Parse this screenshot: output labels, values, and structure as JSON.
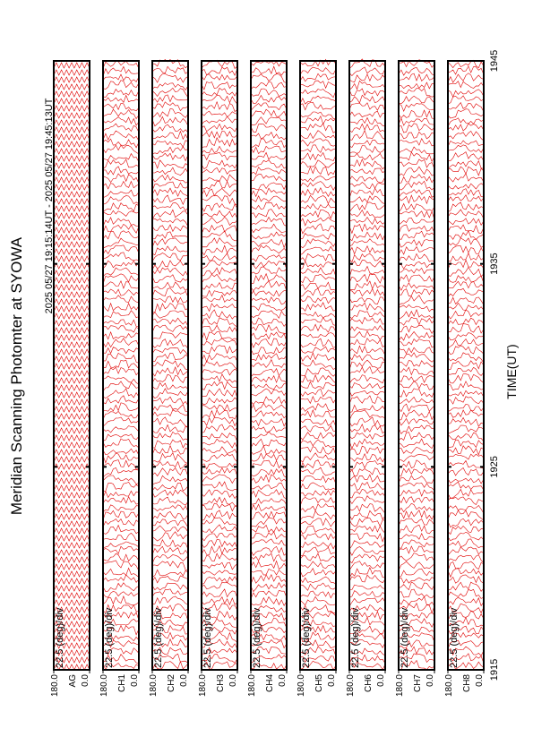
{
  "chart_data": {
    "type": "line",
    "title": "Meridian Scanning Photomter at SYOWA",
    "subtitle": "2025 05/27 19:15:14UT - 2025 05/27 19:45:13UT",
    "xlabel": "TIME(UT)",
    "xlim": [
      1915,
      1945
    ],
    "xticks": [
      1915,
      1925,
      1935,
      1945
    ],
    "color": "#e00000",
    "panels": [
      {
        "name": "AG",
        "scale": "22.5 (deg)/div",
        "ylim": [
          0,
          180
        ],
        "yticks": [
          {
            "value": 180,
            "label": "180.0"
          },
          {
            "value": 0,
            "label": "0.0"
          }
        ]
      },
      {
        "name": "CH1",
        "scale": "22.5 (deg)/div",
        "ylim": [
          0,
          180
        ],
        "yticks": [
          {
            "value": 180,
            "label": "180.0"
          },
          {
            "value": 0,
            "label": "0.0"
          }
        ]
      },
      {
        "name": "CH2",
        "scale": "22.5 (deg)/div",
        "ylim": [
          0,
          180
        ],
        "yticks": [
          {
            "value": 180,
            "label": "180.0"
          },
          {
            "value": 0,
            "label": "0.0"
          }
        ]
      },
      {
        "name": "CH3",
        "scale": "22.5 (deg)/div",
        "ylim": [
          0,
          180
        ],
        "yticks": [
          {
            "value": 180,
            "label": "180.0"
          },
          {
            "value": 0,
            "label": "0.0"
          }
        ]
      },
      {
        "name": "CH4",
        "scale": "22.5 (deg)/div",
        "ylim": [
          0,
          180
        ],
        "yticks": [
          {
            "value": 180,
            "label": "180.0"
          },
          {
            "value": 0,
            "label": "0.0"
          }
        ]
      },
      {
        "name": "CH5",
        "scale": "22.5 (deg)/div",
        "ylim": [
          0,
          180
        ],
        "yticks": [
          {
            "value": 180,
            "label": "180.0"
          },
          {
            "value": 0,
            "label": "0.0"
          }
        ]
      },
      {
        "name": "CH6",
        "scale": "22.5 (deg)/div",
        "ylim": [
          0,
          180
        ],
        "yticks": [
          {
            "value": 180,
            "label": "180.0"
          },
          {
            "value": 0,
            "label": "0.0"
          }
        ]
      },
      {
        "name": "CH7",
        "scale": "22.5 (deg)/div",
        "ylim": [
          0,
          180
        ],
        "yticks": [
          {
            "value": 180,
            "label": "180.0"
          },
          {
            "value": 0,
            "label": "0.0"
          }
        ]
      },
      {
        "name": "CH8",
        "scale": "22.5 (deg)/div",
        "ylim": [
          0,
          180
        ],
        "yticks": [
          {
            "value": 180,
            "label": "180.0"
          },
          {
            "value": 0,
            "label": "0.0"
          }
        ]
      }
    ]
  }
}
